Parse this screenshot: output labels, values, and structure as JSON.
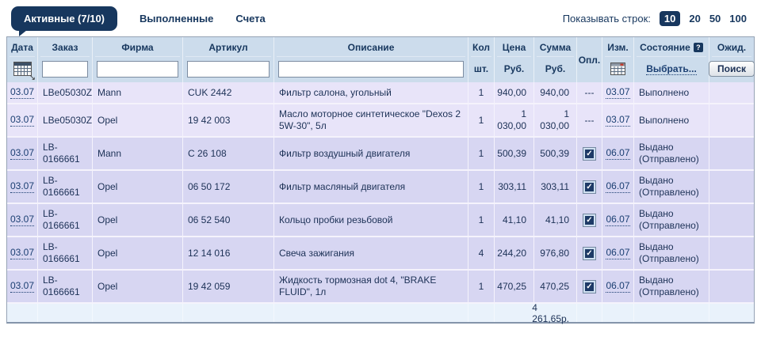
{
  "tabs": [
    {
      "label": "Активные (7/10)",
      "active": true
    },
    {
      "label": "Выполненные",
      "active": false
    },
    {
      "label": "Счета",
      "active": false
    }
  ],
  "show_rows": {
    "label": "Показывать строк:",
    "selected": "10",
    "other_options": [
      "20",
      "50",
      "100"
    ]
  },
  "icons": {
    "help": "?",
    "sort_arrow": "↘",
    "check": "✓"
  },
  "colors": {
    "accent_navy": "#17375e",
    "header_bg": "#ccdcec",
    "row_group_light": "#e8e4f9",
    "row_group_dark": "#d7d6f2",
    "footer_bg": "#e9f2fb"
  },
  "table": {
    "header": {
      "date": "Дата",
      "order": "Заказ",
      "firm": "Фирма",
      "article": "Артикул",
      "description": "Описание",
      "qty": "Кол",
      "qty_sub": "шт.",
      "price": "Цена",
      "price_sub": "Руб.",
      "sum": "Сумма",
      "sum_sub": "Руб.",
      "paid": "Опл.",
      "changed": "Изм.",
      "state": "Состояние",
      "state_select": "Выбрать...",
      "wait": "Ожид.",
      "search_button": "Поиск"
    },
    "rows": [
      {
        "date": "03.07",
        "order": "LBe05030Z",
        "firm": "Mann",
        "article": "CUK 2442",
        "description": "Фильтр салона, угольный",
        "qty": "1",
        "price": "940,00",
        "sum": "940,00",
        "paid": "---",
        "changed": "03.07",
        "state": "Выполнено"
      },
      {
        "date": "03.07",
        "order": "LBe05030Z",
        "firm": "Opel",
        "article": "19 42 003",
        "description": "Масло моторное синтетическое \"Dexos 2 5W-30\", 5л",
        "qty": "1",
        "price": "1 030,00",
        "sum": "1 030,00",
        "paid": "---",
        "changed": "03.07",
        "state": "Выполнено"
      },
      {
        "date": "03.07",
        "order": "LB-0166661",
        "firm": "Mann",
        "article": "C 26 108",
        "description": "Фильтр воздушный двигателя",
        "qty": "1",
        "price": "500,39",
        "sum": "500,39",
        "paid": "checked",
        "changed": "06.07",
        "state": "Выдано (Отправлено)"
      },
      {
        "date": "03.07",
        "order": "LB-0166661",
        "firm": "Opel",
        "article": "06 50 172",
        "description": "Фильтр масляный двигателя",
        "qty": "1",
        "price": "303,11",
        "sum": "303,11",
        "paid": "checked",
        "changed": "06.07",
        "state": "Выдано (Отправлено)"
      },
      {
        "date": "03.07",
        "order": "LB-0166661",
        "firm": "Opel",
        "article": "06 52 540",
        "description": "Кольцо пробки резьбовой",
        "qty": "1",
        "price": "41,10",
        "sum": "41,10",
        "paid": "checked",
        "changed": "06.07",
        "state": "Выдано (Отправлено)"
      },
      {
        "date": "03.07",
        "order": "LB-0166661",
        "firm": "Opel",
        "article": "12 14 016",
        "description": "Свеча зажигания",
        "qty": "4",
        "price": "244,20",
        "sum": "976,80",
        "paid": "checked",
        "changed": "06.07",
        "state": "Выдано (Отправлено)"
      },
      {
        "date": "03.07",
        "order": "LB-0166661",
        "firm": "Opel",
        "article": "19 42 059",
        "description": "Жидкость тормозная dot 4, \"BRAKE FLUID\", 1л",
        "qty": "1",
        "price": "470,25",
        "sum": "470,25",
        "paid": "checked",
        "changed": "06.07",
        "state": "Выдано (Отправлено)"
      }
    ],
    "total": "4 261,65р."
  }
}
